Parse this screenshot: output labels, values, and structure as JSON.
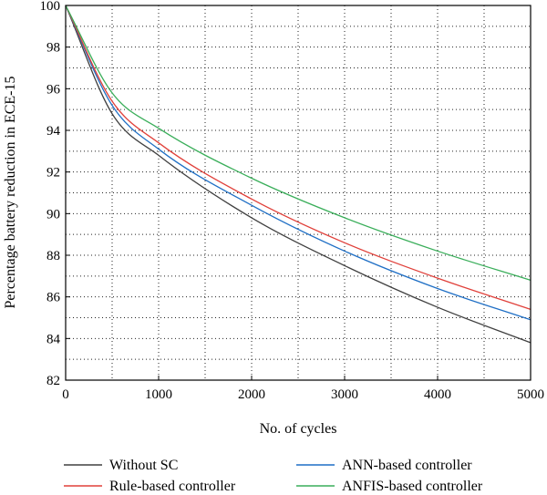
{
  "chart_data": {
    "type": "line",
    "title": "",
    "xlabel": "No. of cycles",
    "ylabel": "Percentage battery reduction in ECE-15",
    "xlim": [
      0,
      5000
    ],
    "ylim": [
      82,
      100
    ],
    "x_ticks": [
      0,
      1000,
      2000,
      3000,
      4000,
      5000
    ],
    "y_ticks": [
      82,
      84,
      86,
      88,
      90,
      92,
      94,
      96,
      98,
      100
    ],
    "x_tick_labels": [
      "0",
      "1000",
      "2000",
      "3000",
      "4000",
      "5000"
    ],
    "y_tick_labels": [
      "82",
      "84",
      "86",
      "88",
      "90",
      "92",
      "94",
      "96",
      "98",
      "100"
    ],
    "grid": true,
    "legend_position": "bottom",
    "x": [
      0,
      500,
      1000,
      2000,
      3000,
      4000,
      5000
    ],
    "series": [
      {
        "name": "Without SC",
        "color": "#404040",
        "values": [
          100,
          94.8,
          92.8,
          89.8,
          87.5,
          85.5,
          83.8
        ]
      },
      {
        "name": "ANN-based controller",
        "color": "#1f6fc5",
        "values": [
          100,
          95.2,
          93.1,
          90.4,
          88.2,
          86.4,
          84.9
        ]
      },
      {
        "name": "Rule-based controller",
        "color": "#e0403a",
        "values": [
          100,
          95.4,
          93.4,
          90.7,
          88.6,
          86.9,
          85.4
        ]
      },
      {
        "name": "ANFIS-based controller",
        "color": "#3aae5a",
        "values": [
          100,
          95.8,
          94.1,
          91.7,
          89.8,
          88.2,
          86.8
        ]
      }
    ],
    "legend_order": [
      0,
      2,
      1,
      3
    ]
  }
}
